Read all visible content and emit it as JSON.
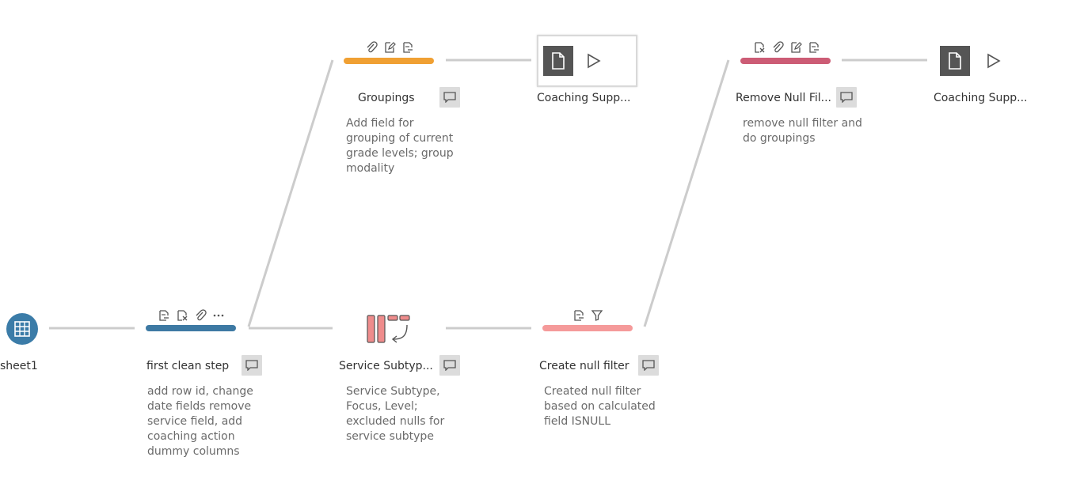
{
  "flow": {
    "input": {
      "label": "sheet1",
      "icon": "table-grid-icon",
      "color": "#3b7ca8"
    },
    "clean1": {
      "label": "first clean step",
      "description": "add row id, change\ndate fields remove\nservice field, add\ncoaching action\ndummy columns",
      "bar_color": "#3d79a3",
      "change_icons": [
        "rename-field-icon",
        "remove-field-icon",
        "attach-icon",
        "more-icon"
      ]
    },
    "groupings": {
      "label": "Groupings",
      "description": "Add field for\ngrouping of current\ngrade levels; group\nmodality",
      "bar_color": "#f0a033",
      "change_icons": [
        "attach-icon",
        "edit-icon",
        "rename-field-icon"
      ]
    },
    "output1": {
      "label": "Coaching Supp...",
      "icon": "document-icon"
    },
    "pivot": {
      "label": "Service Subtyp...",
      "description": "Service Subtype,\nFocus, Level;\nexcluded nulls for\nservice subtype",
      "icon": "pivot-icon",
      "color": "#ef8c8c"
    },
    "nullfilter": {
      "label": "Create null filter",
      "description": "Created null filter\nbased on calculated\nfield ISNULL",
      "bar_color": "#f59a9a",
      "change_icons": [
        "rename-field-icon",
        "filter-icon"
      ]
    },
    "removenull": {
      "label": "Remove Null Fil...",
      "description": "remove null filter and\ndo groupings",
      "bar_color": "#cc5c75",
      "change_icons": [
        "remove-field-icon",
        "attach-icon",
        "edit-icon",
        "rename-field-icon"
      ]
    },
    "output2": {
      "label": "Coaching Supp...",
      "icon": "document-icon"
    }
  },
  "colors": {
    "connector": "#cccccc",
    "comment_bg": "#dcdcdc",
    "output_tile": "#555555"
  }
}
